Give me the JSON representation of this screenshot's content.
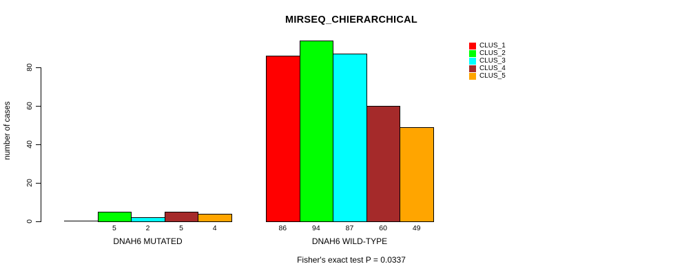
{
  "chart_data": {
    "type": "bar",
    "title": "MIRSEQ_CHIERARCHICAL",
    "ylabel": "number of cases",
    "footnote": "Fisher's exact test P = 0.0337",
    "categories": [
      "DNAH6 MUTATED",
      "DNAH6 WILD-TYPE"
    ],
    "series": [
      {
        "name": "CLUS_1",
        "color": "#FF0000",
        "values": [
          0,
          86
        ]
      },
      {
        "name": "CLUS_2",
        "color": "#00FF00",
        "values": [
          5,
          94
        ]
      },
      {
        "name": "CLUS_3",
        "color": "#00FFFF",
        "values": [
          2,
          87
        ]
      },
      {
        "name": "CLUS_4",
        "color": "#A52A2A",
        "values": [
          5,
          60
        ]
      },
      {
        "name": "CLUS_5",
        "color": "#FFA500",
        "values": [
          4,
          49
        ]
      }
    ],
    "bar_value_labels": {
      "DNAH6 MUTATED": [
        "",
        "5",
        "2",
        "5",
        "4"
      ],
      "DNAH6 WILD-TYPE": [
        "86",
        "94",
        "87",
        "60",
        "49"
      ]
    },
    "yticks": [
      0,
      20,
      40,
      60,
      80
    ],
    "ylim": [
      0,
      96
    ],
    "grid": false,
    "legend_position": "top-right",
    "background_color": "#FFFFFF",
    "bar_border_color": "#000000"
  }
}
